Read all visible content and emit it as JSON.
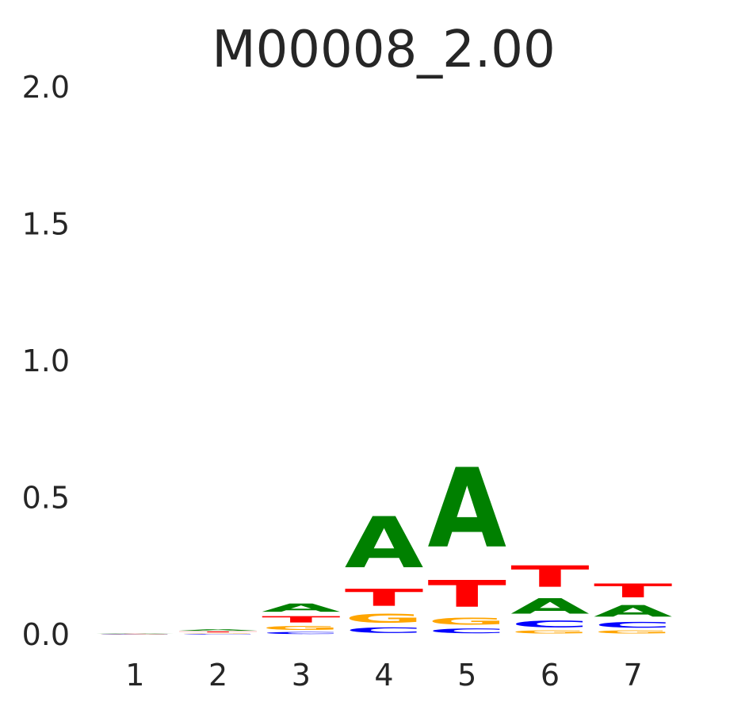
{
  "chart_data": {
    "type": "sequence-logo",
    "title": "M00008_2.00",
    "xlabel": "",
    "ylabel": "",
    "ylim": [
      0,
      2.0
    ],
    "y_ticks": [
      "0.0",
      "0.5",
      "1.0",
      "1.5",
      "2.0"
    ],
    "x_ticks": [
      "1",
      "2",
      "3",
      "4",
      "5",
      "6",
      "7"
    ],
    "grid": false,
    "letter_colors": {
      "A": "#008000",
      "C": "#0000ff",
      "G": "#ffa500",
      "T": "#ff0000"
    },
    "positions": [
      {
        "pos": "1",
        "stack": [
          {
            "letter": "C",
            "height": 0.001
          },
          {
            "letter": "G",
            "height": 0.001
          },
          {
            "letter": "T",
            "height": 0.001
          },
          {
            "letter": "A",
            "height": 0.001
          }
        ]
      },
      {
        "pos": "2",
        "stack": [
          {
            "letter": "C",
            "height": 0.003
          },
          {
            "letter": "G",
            "height": 0.004
          },
          {
            "letter": "T",
            "height": 0.006
          },
          {
            "letter": "A",
            "height": 0.008
          }
        ]
      },
      {
        "pos": "3",
        "stack": [
          {
            "letter": "C",
            "height": 0.012
          },
          {
            "letter": "G",
            "height": 0.025
          },
          {
            "letter": "T",
            "height": 0.037
          },
          {
            "letter": "A",
            "height": 0.048
          }
        ]
      },
      {
        "pos": "4",
        "stack": [
          {
            "letter": "C",
            "height": 0.032
          },
          {
            "letter": "G",
            "height": 0.053
          },
          {
            "letter": "T",
            "height": 0.1
          },
          {
            "letter": "A",
            "height": 0.3
          }
        ]
      },
      {
        "pos": "5",
        "stack": [
          {
            "letter": "C",
            "height": 0.027
          },
          {
            "letter": "G",
            "height": 0.043
          },
          {
            "letter": "T",
            "height": 0.157
          },
          {
            "letter": "A",
            "height": 0.466
          }
        ]
      },
      {
        "pos": "6",
        "stack": [
          {
            "letter": "G",
            "height": 0.019
          },
          {
            "letter": "C",
            "height": 0.039
          },
          {
            "letter": "A",
            "height": 0.091
          },
          {
            "letter": "T",
            "height": 0.126
          }
        ]
      },
      {
        "pos": "7",
        "stack": [
          {
            "letter": "G",
            "height": 0.019
          },
          {
            "letter": "C",
            "height": 0.033
          },
          {
            "letter": "A",
            "height": 0.068
          },
          {
            "letter": "T",
            "height": 0.081
          }
        ]
      }
    ]
  }
}
